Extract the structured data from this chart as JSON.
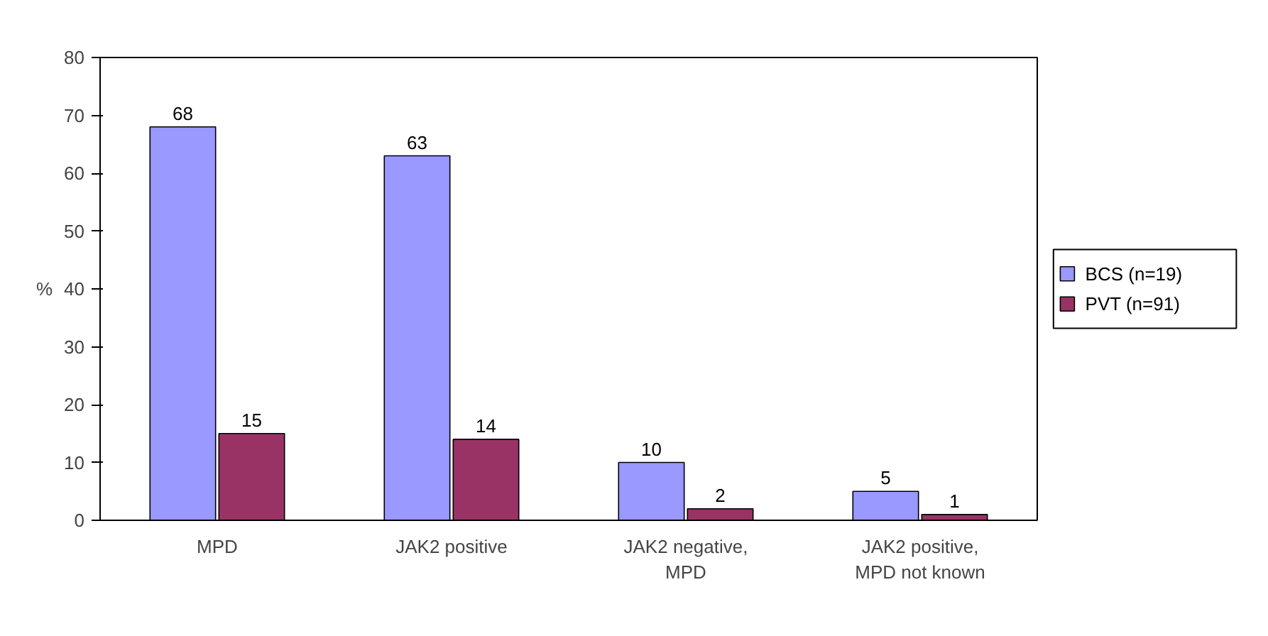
{
  "chart_data": {
    "type": "bar",
    "ylabel": "%",
    "categories": [
      "MPD",
      "JAK2 positive",
      "JAK2 negative, MPD",
      "JAK2 positive, MPD not known"
    ],
    "series": [
      {
        "name": "BCS (n=19)",
        "color": "#9999ff",
        "values": [
          68,
          63,
          10,
          5
        ]
      },
      {
        "name": "PVT (n=91)",
        "color": "#993366",
        "values": [
          15,
          14,
          2,
          1
        ]
      }
    ],
    "ylim": [
      0,
      80
    ],
    "yticks": [
      0,
      10,
      20,
      30,
      40,
      50,
      60,
      70,
      80
    ],
    "grid": false,
    "legend": "right",
    "data_labels": true
  }
}
